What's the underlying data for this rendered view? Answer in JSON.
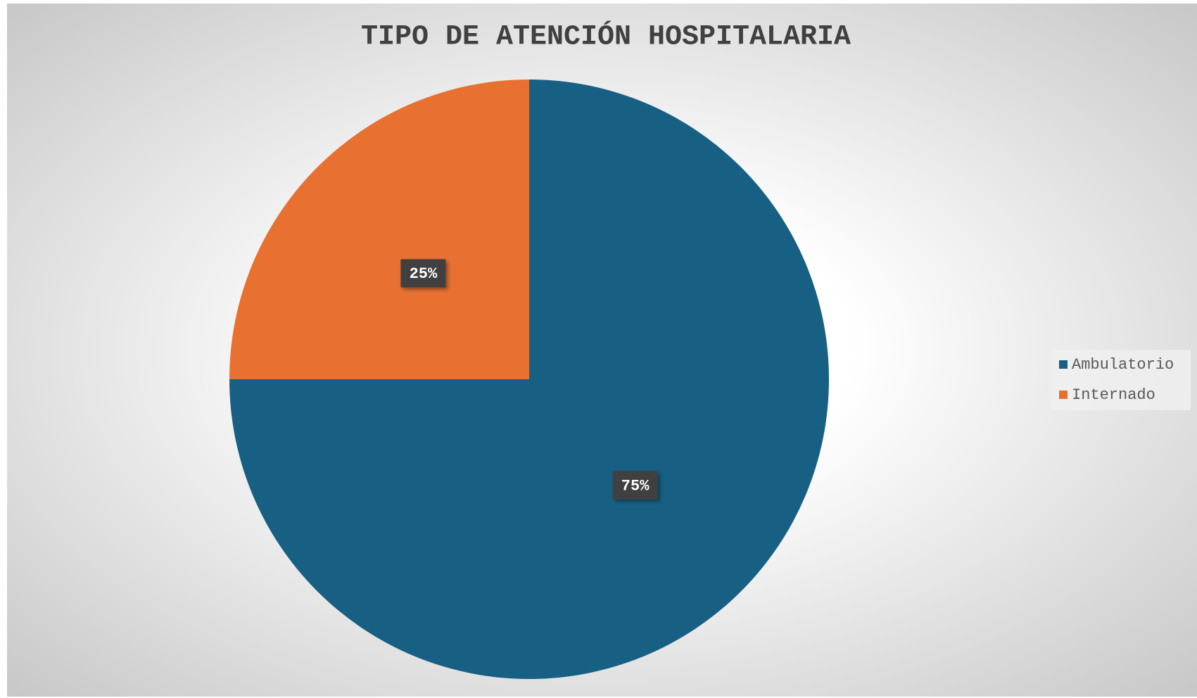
{
  "chart_data": {
    "type": "pie",
    "title": "TIPO DE ATENCIÓN HOSPITALARIA",
    "categories": [
      "Ambulatorio",
      "Internado"
    ],
    "values": [
      75,
      25
    ],
    "value_labels": [
      "75%",
      "25%"
    ],
    "colors": [
      "#176083",
      "#e87132"
    ],
    "legend": "right"
  }
}
